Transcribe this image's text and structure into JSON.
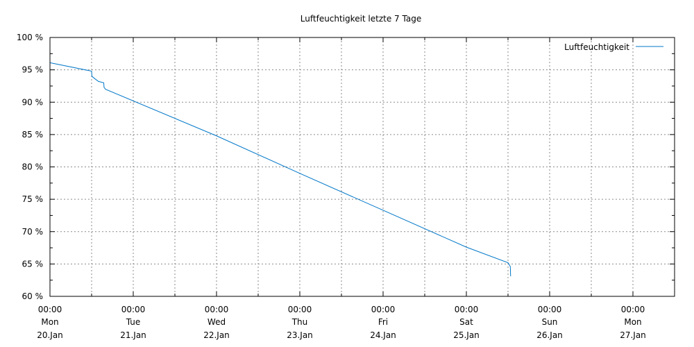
{
  "chart_data": {
    "type": "line",
    "title": "Luftfeuchtigkeit letzte 7 Tage",
    "xlabel": "",
    "ylabel": "",
    "ylim": [
      60,
      100
    ],
    "yticks": [
      {
        "value": 60,
        "label": "60 %"
      },
      {
        "value": 65,
        "label": "65 %"
      },
      {
        "value": 70,
        "label": "70 %"
      },
      {
        "value": 75,
        "label": "75 %"
      },
      {
        "value": 80,
        "label": "80 %"
      },
      {
        "value": 85,
        "label": "85 %"
      },
      {
        "value": 90,
        "label": "90 %"
      },
      {
        "value": 95,
        "label": "95 %"
      },
      {
        "value": 100,
        "label": "100 %"
      }
    ],
    "xlim": [
      "2025-01-20 00:00",
      "2025-01-27 12:00"
    ],
    "xticks": [
      {
        "value": "2025-01-20 00:00",
        "time": "00:00",
        "weekday": "Mon",
        "date": "20.Jan"
      },
      {
        "value": "2025-01-21 00:00",
        "time": "00:00",
        "weekday": "Tue",
        "date": "21.Jan"
      },
      {
        "value": "2025-01-22 00:00",
        "time": "00:00",
        "weekday": "Wed",
        "date": "22.Jan"
      },
      {
        "value": "2025-01-23 00:00",
        "time": "00:00",
        "weekday": "Thu",
        "date": "23.Jan"
      },
      {
        "value": "2025-01-24 00:00",
        "time": "00:00",
        "weekday": "Fri",
        "date": "24.Jan"
      },
      {
        "value": "2025-01-25 00:00",
        "time": "00:00",
        "weekday": "Sat",
        "date": "25.Jan"
      },
      {
        "value": "2025-01-26 00:00",
        "time": "00:00",
        "weekday": "Sun",
        "date": "26.Jan"
      },
      {
        "value": "2025-01-27 00:00",
        "time": "00:00",
        "weekday": "Mon",
        "date": "27.Jan"
      }
    ],
    "grid": true,
    "legend_position": "top-right",
    "series": [
      {
        "name": "Luftfeuchtigkeit",
        "color": "#0077c8",
        "points": [
          {
            "x": "2025-01-20 00:00",
            "y": 96.1
          },
          {
            "x": "2025-01-20 12:00",
            "y": 94.8
          },
          {
            "x": "2025-01-20 12:05",
            "y": 94.0
          },
          {
            "x": "2025-01-20 13:00",
            "y": 93.6
          },
          {
            "x": "2025-01-20 14:00",
            "y": 93.2
          },
          {
            "x": "2025-01-20 15:30",
            "y": 93.0
          },
          {
            "x": "2025-01-20 15:35",
            "y": 92.3
          },
          {
            "x": "2025-01-20 16:00",
            "y": 92.0
          },
          {
            "x": "2025-01-22 00:00",
            "y": 84.8
          },
          {
            "x": "2025-01-23 00:00",
            "y": 79.0
          },
          {
            "x": "2025-01-24 00:00",
            "y": 73.3
          },
          {
            "x": "2025-01-25 00:00",
            "y": 67.6
          },
          {
            "x": "2025-01-25 12:00",
            "y": 65.2
          },
          {
            "x": "2025-01-25 12:40",
            "y": 64.6
          },
          {
            "x": "2025-01-25 12:45",
            "y": 63.1
          }
        ]
      }
    ]
  }
}
